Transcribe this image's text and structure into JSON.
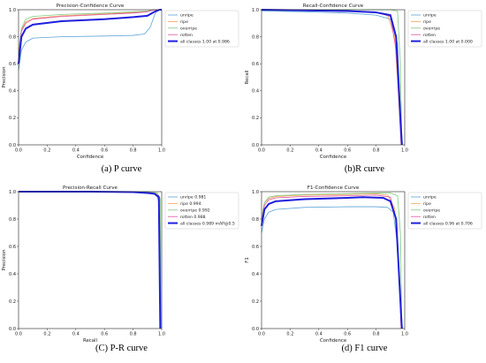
{
  "chart_data": [
    {
      "type": "line",
      "title": "Precision-Confidence Curve",
      "xlabel": "Confidence",
      "ylabel": "Precision",
      "caption": "(a) P curve",
      "xlim": [
        0,
        1
      ],
      "ylim": [
        0,
        1
      ],
      "xticks": [
        "0.0",
        "0.2",
        "0.4",
        "0.6",
        "0.8",
        "1.0"
      ],
      "yticks": [
        "0.0",
        "0.2",
        "0.4",
        "0.6",
        "0.8",
        "1.0"
      ],
      "legend_position": "top-right",
      "series": [
        {
          "name": "unripe",
          "color": "#5ba3d6",
          "width": 0.8,
          "points": [
            [
              0,
              0.55
            ],
            [
              0.02,
              0.7
            ],
            [
              0.05,
              0.76
            ],
            [
              0.1,
              0.79
            ],
            [
              0.3,
              0.8
            ],
            [
              0.6,
              0.805
            ],
            [
              0.8,
              0.81
            ],
            [
              0.88,
              0.82
            ],
            [
              0.92,
              0.87
            ],
            [
              0.95,
              0.96
            ],
            [
              0.97,
              1.0
            ],
            [
              1.0,
              1.0
            ]
          ]
        },
        {
          "name": "ripe",
          "color": "#f7a55a",
          "width": 0.8,
          "points": [
            [
              0,
              0.7
            ],
            [
              0.02,
              0.85
            ],
            [
              0.05,
              0.91
            ],
            [
              0.1,
              0.935
            ],
            [
              0.3,
              0.955
            ],
            [
              0.6,
              0.97
            ],
            [
              0.8,
              0.98
            ],
            [
              0.9,
              0.99
            ],
            [
              0.95,
              1.0
            ],
            [
              1.0,
              1.0
            ]
          ]
        },
        {
          "name": "overripe",
          "color": "#7fc97f",
          "width": 0.8,
          "points": [
            [
              0,
              0.68
            ],
            [
              0.02,
              0.86
            ],
            [
              0.05,
              0.93
            ],
            [
              0.1,
              0.95
            ],
            [
              0.3,
              0.965
            ],
            [
              0.6,
              0.975
            ],
            [
              0.8,
              0.985
            ],
            [
              0.9,
              0.99
            ],
            [
              0.95,
              1.0
            ],
            [
              1.0,
              1.0
            ]
          ]
        },
        {
          "name": "rotten",
          "color": "#e0529c",
          "width": 0.8,
          "points": [
            [
              0,
              0.66
            ],
            [
              0.02,
              0.84
            ],
            [
              0.05,
              0.9
            ],
            [
              0.1,
              0.93
            ],
            [
              0.3,
              0.95
            ],
            [
              0.6,
              0.965
            ],
            [
              0.8,
              0.975
            ],
            [
              0.9,
              0.985
            ],
            [
              0.95,
              1.0
            ],
            [
              1.0,
              1.0
            ]
          ]
        },
        {
          "name": "all classes 1.00 at 0.986",
          "color": "#1f1fdd",
          "width": 2.0,
          "points": [
            [
              0,
              0.6
            ],
            [
              0.02,
              0.8
            ],
            [
              0.05,
              0.86
            ],
            [
              0.1,
              0.89
            ],
            [
              0.3,
              0.915
            ],
            [
              0.6,
              0.93
            ],
            [
              0.8,
              0.945
            ],
            [
              0.9,
              0.955
            ],
            [
              0.95,
              0.985
            ],
            [
              0.986,
              1.0
            ],
            [
              1.0,
              1.0
            ]
          ]
        }
      ]
    },
    {
      "type": "line",
      "title": "Recall-Confidence Curve",
      "xlabel": "Confidence",
      "ylabel": "Recall",
      "caption": "(b)R curve",
      "xlim": [
        0,
        1
      ],
      "ylim": [
        0,
        1
      ],
      "xticks": [
        "0.0",
        "0.2",
        "0.4",
        "0.6",
        "0.8",
        "1.0"
      ],
      "yticks": [
        "0.0",
        "0.2",
        "0.4",
        "0.6",
        "0.8",
        "1.0"
      ],
      "legend_position": "top-right",
      "series": [
        {
          "name": "unripe",
          "color": "#5ba3d6",
          "width": 0.8,
          "points": [
            [
              0,
              0.99
            ],
            [
              0.3,
              0.985
            ],
            [
              0.6,
              0.975
            ],
            [
              0.8,
              0.96
            ],
            [
              0.9,
              0.93
            ],
            [
              0.95,
              0.75
            ],
            [
              0.97,
              0.25
            ],
            [
              0.985,
              0.0
            ]
          ]
        },
        {
          "name": "ripe",
          "color": "#f7a55a",
          "width": 0.8,
          "points": [
            [
              0,
              1.0
            ],
            [
              0.3,
              0.995
            ],
            [
              0.6,
              0.99
            ],
            [
              0.8,
              0.98
            ],
            [
              0.88,
              0.96
            ],
            [
              0.93,
              0.8
            ],
            [
              0.96,
              0.3
            ],
            [
              0.975,
              0.0
            ]
          ]
        },
        {
          "name": "overripe",
          "color": "#7fc97f",
          "width": 0.8,
          "points": [
            [
              0,
              1.0
            ],
            [
              0.3,
              1.0
            ],
            [
              0.6,
              1.0
            ],
            [
              0.8,
              1.0
            ],
            [
              0.9,
              1.0
            ],
            [
              0.95,
              0.99
            ],
            [
              0.97,
              0.6
            ],
            [
              0.98,
              0.0
            ]
          ]
        },
        {
          "name": "rotten",
          "color": "#e0529c",
          "width": 0.8,
          "points": [
            [
              0,
              1.0
            ],
            [
              0.3,
              0.995
            ],
            [
              0.6,
              0.99
            ],
            [
              0.8,
              0.98
            ],
            [
              0.9,
              0.95
            ],
            [
              0.94,
              0.7
            ],
            [
              0.965,
              0.2
            ],
            [
              0.975,
              0.0
            ]
          ]
        },
        {
          "name": "all classes 1.00 at 0.000",
          "color": "#1f1fdd",
          "width": 2.0,
          "points": [
            [
              0,
              1.0
            ],
            [
              0.3,
              0.995
            ],
            [
              0.6,
              0.99
            ],
            [
              0.8,
              0.98
            ],
            [
              0.9,
              0.96
            ],
            [
              0.94,
              0.8
            ],
            [
              0.965,
              0.3
            ],
            [
              0.98,
              0.0
            ]
          ]
        }
      ]
    },
    {
      "type": "line",
      "title": "Precision-Recall Curve",
      "xlabel": "Recall",
      "ylabel": "Precision",
      "caption": "(C) P-R curve",
      "xlim": [
        0,
        1
      ],
      "ylim": [
        0,
        1
      ],
      "xticks": [
        "0.0",
        "0.2",
        "0.4",
        "0.6",
        "0.8",
        "1.0"
      ],
      "yticks": [
        "0.0",
        "0.2",
        "0.4",
        "0.6",
        "0.8",
        "1.0"
      ],
      "legend_position": "top-right",
      "series": [
        {
          "name": "unripe 0.981",
          "color": "#5ba3d6",
          "width": 0.8,
          "points": [
            [
              0,
              1.0
            ],
            [
              0.5,
              1.0
            ],
            [
              0.8,
              0.995
            ],
            [
              0.9,
              0.99
            ],
            [
              0.95,
              0.98
            ],
            [
              0.97,
              0.96
            ],
            [
              0.985,
              0.9
            ],
            [
              0.99,
              0.0
            ]
          ]
        },
        {
          "name": "ripe 0.994",
          "color": "#f7a55a",
          "width": 0.8,
          "points": [
            [
              0,
              1.0
            ],
            [
              0.5,
              1.0
            ],
            [
              0.8,
              1.0
            ],
            [
              0.9,
              0.995
            ],
            [
              0.96,
              0.99
            ],
            [
              0.985,
              0.95
            ],
            [
              0.99,
              0.0
            ]
          ]
        },
        {
          "name": "overripe 0.992",
          "color": "#7fc97f",
          "width": 0.8,
          "points": [
            [
              0,
              1.0
            ],
            [
              0.5,
              1.0
            ],
            [
              0.8,
              1.0
            ],
            [
              0.9,
              1.0
            ],
            [
              0.97,
              0.99
            ],
            [
              0.99,
              0.95
            ],
            [
              0.995,
              0.0
            ]
          ]
        },
        {
          "name": "rotten 0.988",
          "color": "#e0529c",
          "width": 0.8,
          "points": [
            [
              0,
              1.0
            ],
            [
              0.5,
              1.0
            ],
            [
              0.8,
              0.995
            ],
            [
              0.9,
              0.99
            ],
            [
              0.95,
              0.985
            ],
            [
              0.98,
              0.97
            ],
            [
              0.99,
              0.0
            ]
          ]
        },
        {
          "name": "all classes 0.989 mAP@0.5",
          "color": "#1f1fdd",
          "width": 2.0,
          "points": [
            [
              0,
              1.0
            ],
            [
              0.5,
              1.0
            ],
            [
              0.8,
              0.997
            ],
            [
              0.9,
              0.99
            ],
            [
              0.95,
              0.985
            ],
            [
              0.98,
              0.96
            ],
            [
              0.99,
              0.0
            ]
          ]
        }
      ]
    },
    {
      "type": "line",
      "title": "F1-Confidence Curve",
      "xlabel": "Confidence",
      "ylabel": "F1",
      "caption": "(d) F1 curve",
      "xlim": [
        0,
        1
      ],
      "ylim": [
        0,
        1
      ],
      "xticks": [
        "0.0",
        "0.2",
        "0.4",
        "0.6",
        "0.8",
        "1.0"
      ],
      "yticks": [
        "0.0",
        "0.2",
        "0.4",
        "0.6",
        "0.8",
        "1.0"
      ],
      "legend_position": "top-right",
      "series": [
        {
          "name": "unripe",
          "color": "#5ba3d6",
          "width": 0.8,
          "points": [
            [
              0,
              0.7
            ],
            [
              0.02,
              0.8
            ],
            [
              0.05,
              0.85
            ],
            [
              0.1,
              0.87
            ],
            [
              0.3,
              0.885
            ],
            [
              0.6,
              0.89
            ],
            [
              0.8,
              0.89
            ],
            [
              0.88,
              0.885
            ],
            [
              0.92,
              0.85
            ],
            [
              0.95,
              0.6
            ],
            [
              0.97,
              0.2
            ],
            [
              0.985,
              0.0
            ]
          ]
        },
        {
          "name": "ripe",
          "color": "#f7a55a",
          "width": 0.8,
          "points": [
            [
              0,
              0.8
            ],
            [
              0.02,
              0.92
            ],
            [
              0.05,
              0.95
            ],
            [
              0.1,
              0.965
            ],
            [
              0.3,
              0.975
            ],
            [
              0.6,
              0.98
            ],
            [
              0.8,
              0.985
            ],
            [
              0.88,
              0.975
            ],
            [
              0.93,
              0.88
            ],
            [
              0.96,
              0.4
            ],
            [
              0.975,
              0.0
            ]
          ]
        },
        {
          "name": "overripe",
          "color": "#7fc97f",
          "width": 0.8,
          "points": [
            [
              0,
              0.8
            ],
            [
              0.02,
              0.92
            ],
            [
              0.05,
              0.96
            ],
            [
              0.1,
              0.97
            ],
            [
              0.3,
              0.98
            ],
            [
              0.6,
              0.985
            ],
            [
              0.8,
              0.99
            ],
            [
              0.9,
              0.99
            ],
            [
              0.95,
              0.97
            ],
            [
              0.97,
              0.7
            ],
            [
              0.98,
              0.0
            ]
          ]
        },
        {
          "name": "rotten",
          "color": "#e0529c",
          "width": 0.8,
          "points": [
            [
              0,
              0.78
            ],
            [
              0.02,
              0.9
            ],
            [
              0.05,
              0.94
            ],
            [
              0.1,
              0.955
            ],
            [
              0.3,
              0.965
            ],
            [
              0.6,
              0.97
            ],
            [
              0.8,
              0.975
            ],
            [
              0.9,
              0.96
            ],
            [
              0.94,
              0.8
            ],
            [
              0.965,
              0.3
            ],
            [
              0.975,
              0.0
            ]
          ]
        },
        {
          "name": "all classes 0.96 at 0.706",
          "color": "#1f1fdd",
          "width": 2.0,
          "points": [
            [
              0,
              0.75
            ],
            [
              0.02,
              0.87
            ],
            [
              0.05,
              0.91
            ],
            [
              0.1,
              0.93
            ],
            [
              0.3,
              0.945
            ],
            [
              0.6,
              0.955
            ],
            [
              0.706,
              0.96
            ],
            [
              0.85,
              0.955
            ],
            [
              0.9,
              0.93
            ],
            [
              0.94,
              0.8
            ],
            [
              0.965,
              0.3
            ],
            [
              0.98,
              0.0
            ]
          ]
        }
      ]
    }
  ]
}
